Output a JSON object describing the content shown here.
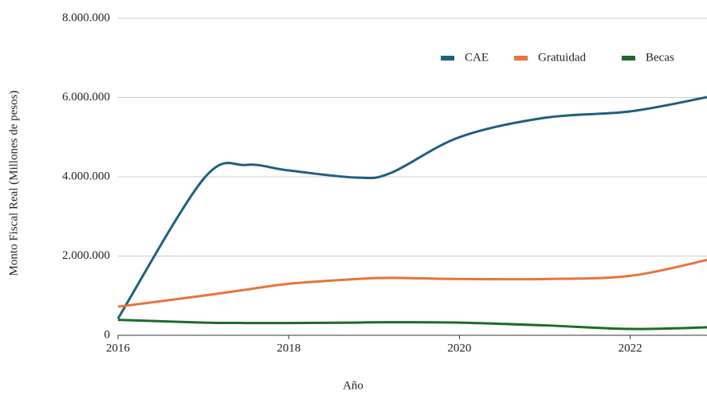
{
  "chart_data": {
    "type": "line",
    "x_label": "Año",
    "y_label": "Monto Fiscal Real (Millones de pesos)",
    "x": [
      2016,
      2017,
      2017.5,
      2018,
      2018.8,
      2019.2,
      2020,
      2021,
      2022,
      2022.9
    ],
    "series": [
      {
        "name": "CAE",
        "color": "#1f5f7f",
        "values": [
          420000,
          3940000,
          4300000,
          4160000,
          3980000,
          4100000,
          5000000,
          5490000,
          5650000,
          6010000
        ]
      },
      {
        "name": "Gratuidad",
        "color": "#e8743b",
        "values": [
          720000,
          1000000,
          1150000,
          1300000,
          1420000,
          1450000,
          1420000,
          1420000,
          1500000,
          1900000
        ]
      },
      {
        "name": "Becas",
        "color": "#1e6b2a",
        "values": [
          390000,
          320000,
          310000,
          310000,
          320000,
          330000,
          320000,
          250000,
          160000,
          200000
        ]
      }
    ],
    "xlim": [
      2016,
      2022.9
    ],
    "xticks": [
      2016,
      2018,
      2020,
      2022
    ],
    "ylim": [
      0,
      8000000
    ],
    "yticks": [
      0,
      {
        "value": 2000000,
        "label": "2.000.000"
      },
      {
        "value": 4000000,
        "label": "4.000.000"
      },
      {
        "value": 6000000,
        "label": "6.000.000"
      },
      {
        "value": 8000000,
        "label": "8.000.000"
      }
    ],
    "grid": true,
    "legend": "top-right"
  }
}
